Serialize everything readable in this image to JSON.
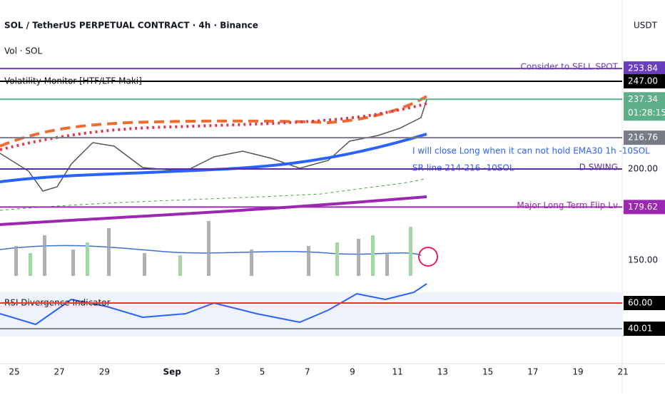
{
  "header": {
    "title": "SOL / TetherUS PERPETUAL CONTRACT · 4h · Binance",
    "currency": "USDT"
  },
  "indicators": [
    "Vol · SOL",
    "Volatility Monitor [HTF/LTF Maki]",
    "RSI Divergence Indicator"
  ],
  "levels": [
    {
      "price": {
        "value": 253.84,
        "label": "253.84"
      },
      "label": "Consider to SELL SPOT",
      "color": "#6a3dc0"
    },
    {
      "price": {
        "value": 247,
        "label": "247.00"
      },
      "color": "#000000"
    },
    {
      "price": {
        "value": 237.34,
        "label": "237.34"
      },
      "countdown": "01:28:15",
      "color": "#5fae8a"
    },
    {
      "price": {
        "value": 216.76,
        "label": "216.76"
      },
      "color": "#787b86"
    },
    {
      "price": {
        "value": 200,
        "label": "200.00"
      },
      "label": "D SWING",
      "color": "#5a2ca8"
    },
    {
      "price": {
        "value": 179.62,
        "label": "179.62"
      },
      "label": "Major Long Term Flip Lv",
      "color": "#9c27b0"
    }
  ],
  "price_ticks": [
    {
      "value": 150,
      "label": "150.00"
    }
  ],
  "rsi_levels": [
    {
      "value": 60,
      "label": "60.00"
    },
    {
      "value": 40.01,
      "label": "40.01"
    }
  ],
  "notes": [
    "I will close Long when it can not hold EMA30 1h -10SOL",
    "SR line 214-216 -10SOL"
  ],
  "dates": [
    "25",
    "27",
    "29",
    "Sep",
    "3",
    "5",
    "7",
    "9",
    "11",
    "13",
    "15",
    "17",
    "19",
    "21"
  ]
}
